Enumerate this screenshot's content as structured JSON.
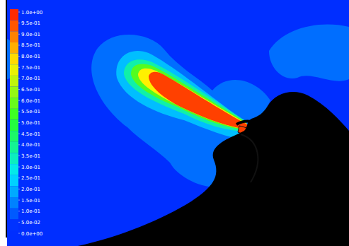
{
  "chart_data": {
    "type": "contour",
    "colorbar": {
      "range": [
        0,
        1
      ],
      "ticks": [
        {
          "value": 1,
          "label": "1.0e+00"
        },
        {
          "value": 0.95,
          "label": "9.5e-01"
        },
        {
          "value": 0.9,
          "label": "9.0e-01"
        },
        {
          "value": 0.85,
          "label": "8.5e-01"
        },
        {
          "value": 0.8,
          "label": "8.0e-01"
        },
        {
          "value": 0.75,
          "label": "7.5e-01"
        },
        {
          "value": 0.7,
          "label": "7.0e-01"
        },
        {
          "value": 0.65,
          "label": "6.5e-01"
        },
        {
          "value": 0.6,
          "label": "6.0e-01"
        },
        {
          "value": 0.55,
          "label": "5.5e-01"
        },
        {
          "value": 0.5,
          "label": "5.0e-01"
        },
        {
          "value": 0.45,
          "label": "4.5e-01"
        },
        {
          "value": 0.4,
          "label": "4.0e-01"
        },
        {
          "value": 0.35,
          "label": "3.5e-01"
        },
        {
          "value": 0.3,
          "label": "3.0e-01"
        },
        {
          "value": 0.25,
          "label": "2.5e-01"
        },
        {
          "value": 0.2,
          "label": "2.0e-01"
        },
        {
          "value": 0.15,
          "label": "1.5e-01"
        },
        {
          "value": 0.1,
          "label": "1.0e-01"
        },
        {
          "value": 0.05,
          "label": "5.0e-02"
        },
        {
          "value": 0,
          "label": "0.0e+00"
        }
      ]
    },
    "contour_levels": [
      0.02,
      0.1,
      0.2,
      0.35,
      0.55,
      0.75,
      0.95
    ]
  }
}
